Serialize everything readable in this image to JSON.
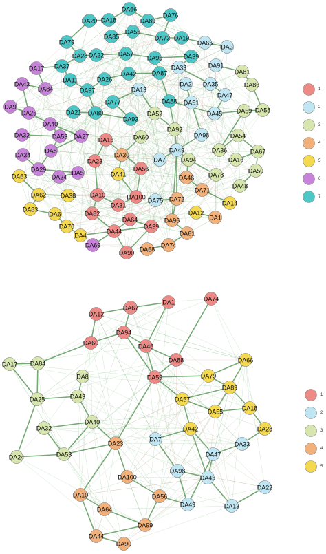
{
  "colors": {
    "1": "#ee8a86",
    "2": "#bfe6f2",
    "3": "#d7e6ae",
    "4": "#f2b07a",
    "5": "#f4d94e",
    "6": "#c783d9",
    "7": "#4cc6c6"
  },
  "networks": [
    {
      "id": "network-top",
      "legend": [
        "1",
        "2",
        "3",
        "4",
        "5",
        "6",
        "7"
      ],
      "nodes": [
        {
          "id": "DA66",
          "c": "7"
        },
        {
          "id": "DA20",
          "c": "7"
        },
        {
          "id": "DA18",
          "c": "7"
        },
        {
          "id": "DA89",
          "c": "7"
        },
        {
          "id": "DA76",
          "c": "7"
        },
        {
          "id": "DA85",
          "c": "7"
        },
        {
          "id": "DA55",
          "c": "7"
        },
        {
          "id": "DA73",
          "c": "7"
        },
        {
          "id": "DA19",
          "c": "7"
        },
        {
          "id": "DA79",
          "c": "7"
        },
        {
          "id": "DA65",
          "c": "2"
        },
        {
          "id": "DA3",
          "c": "2"
        },
        {
          "id": "DA28",
          "c": "7"
        },
        {
          "id": "DA22",
          "c": "7"
        },
        {
          "id": "DA57",
          "c": "7"
        },
        {
          "id": "DA95",
          "c": "7"
        },
        {
          "id": "DA39",
          "c": "7"
        },
        {
          "id": "DA17",
          "c": "6"
        },
        {
          "id": "DA37",
          "c": "7"
        },
        {
          "id": "DA91",
          "c": "2"
        },
        {
          "id": "DA33",
          "c": "2"
        },
        {
          "id": "DA87",
          "c": "7"
        },
        {
          "id": "DA81",
          "c": "3"
        },
        {
          "id": "DA42",
          "c": "7"
        },
        {
          "id": "DA43",
          "c": "6"
        },
        {
          "id": "DA11",
          "c": "7"
        },
        {
          "id": "DA26",
          "c": "7"
        },
        {
          "id": "DA84",
          "c": "6"
        },
        {
          "id": "DA97",
          "c": "7"
        },
        {
          "id": "DA13",
          "c": "2"
        },
        {
          "id": "DA2",
          "c": "2"
        },
        {
          "id": "DA35",
          "c": "2"
        },
        {
          "id": "DA86",
          "c": "3"
        },
        {
          "id": "DA47",
          "c": "2"
        },
        {
          "id": "DA9",
          "c": "6"
        },
        {
          "id": "DA77",
          "c": "7"
        },
        {
          "id": "DA88",
          "c": "7"
        },
        {
          "id": "DA51",
          "c": "2"
        },
        {
          "id": "DA25",
          "c": "6"
        },
        {
          "id": "DA21",
          "c": "7"
        },
        {
          "id": "DA80",
          "c": "7"
        },
        {
          "id": "DA52",
          "c": "3"
        },
        {
          "id": "DA45",
          "c": "2"
        },
        {
          "id": "DA59",
          "c": "3"
        },
        {
          "id": "DA58",
          "c": "3"
        },
        {
          "id": "DA93",
          "c": "7"
        },
        {
          "id": "DA40",
          "c": "6"
        },
        {
          "id": "DA32",
          "c": "6"
        },
        {
          "id": "DA53",
          "c": "6"
        },
        {
          "id": "DA27",
          "c": "6"
        },
        {
          "id": "DA92",
          "c": "3"
        },
        {
          "id": "DA60",
          "c": "3"
        },
        {
          "id": "DA98",
          "c": "2"
        },
        {
          "id": "DA54",
          "c": "3"
        },
        {
          "id": "DA15",
          "c": "1"
        },
        {
          "id": "DA8",
          "c": "6"
        },
        {
          "id": "DA34",
          "c": "6"
        },
        {
          "id": "DA30",
          "c": "4"
        },
        {
          "id": "DA49",
          "c": "2"
        },
        {
          "id": "DA36",
          "c": "3"
        },
        {
          "id": "DA67",
          "c": "3"
        },
        {
          "id": "DA7",
          "c": "2"
        },
        {
          "id": "DA94",
          "c": "3"
        },
        {
          "id": "DA16",
          "c": "3"
        },
        {
          "id": "DA23",
          "c": "1"
        },
        {
          "id": "DA56",
          "c": "1"
        },
        {
          "id": "DA29",
          "c": "6"
        },
        {
          "id": "DA24",
          "c": "6"
        },
        {
          "id": "DA5",
          "c": "6"
        },
        {
          "id": "DA50",
          "c": "3"
        },
        {
          "id": "DA63",
          "c": "5"
        },
        {
          "id": "DA41",
          "c": "5"
        },
        {
          "id": "DA78",
          "c": "3"
        },
        {
          "id": "DA46",
          "c": "4"
        },
        {
          "id": "DA48",
          "c": "3"
        },
        {
          "id": "DA71",
          "c": "4"
        },
        {
          "id": "DA62",
          "c": "5"
        },
        {
          "id": "DA38",
          "c": "5"
        },
        {
          "id": "DA10",
          "c": "1"
        },
        {
          "id": "DA100",
          "c": "1"
        },
        {
          "id": "DA75",
          "c": "2"
        },
        {
          "id": "DA72",
          "c": "4"
        },
        {
          "id": "DA14",
          "c": "5"
        },
        {
          "id": "DA83",
          "c": "5"
        },
        {
          "id": "DA31",
          "c": "1"
        },
        {
          "id": "DA6",
          "c": "5"
        },
        {
          "id": "DA82",
          "c": "1"
        },
        {
          "id": "DA12",
          "c": "5"
        },
        {
          "id": "DA1",
          "c": "4"
        },
        {
          "id": "DA64",
          "c": "1"
        },
        {
          "id": "DA96",
          "c": "4"
        },
        {
          "id": "DA70",
          "c": "5"
        },
        {
          "id": "DA99",
          "c": "1"
        },
        {
          "id": "DA44",
          "c": "1"
        },
        {
          "id": "DA4",
          "c": "5"
        },
        {
          "id": "DA61",
          "c": "4"
        },
        {
          "id": "DA74",
          "c": "4"
        },
        {
          "id": "DA69",
          "c": "6"
        },
        {
          "id": "DA68",
          "c": "4"
        },
        {
          "id": "DA90",
          "c": "1"
        }
      ],
      "edges": [
        [
          "DA20",
          "DA79"
        ],
        [
          "DA20",
          "DA18"
        ],
        [
          "DA18",
          "DA66"
        ],
        [
          "DA66",
          "DA89"
        ],
        [
          "DA89",
          "DA76"
        ],
        [
          "DA85",
          "DA55"
        ],
        [
          "DA55",
          "DA73"
        ],
        [
          "DA73",
          "DA19"
        ],
        [
          "DA79",
          "DA28"
        ],
        [
          "DA28",
          "DA37"
        ],
        [
          "DA37",
          "DA11"
        ],
        [
          "DA11",
          "DA97"
        ],
        [
          "DA97",
          "DA80"
        ],
        [
          "DA22",
          "DA28"
        ],
        [
          "DA57",
          "DA95"
        ],
        [
          "DA95",
          "DA87"
        ],
        [
          "DA87",
          "DA88"
        ],
        [
          "DA88",
          "DA92"
        ],
        [
          "DA92",
          "DA49"
        ],
        [
          "DA42",
          "DA26"
        ],
        [
          "DA26",
          "DA97"
        ],
        [
          "DA65",
          "DA3"
        ],
        [
          "DA39",
          "DA33"
        ],
        [
          "DA33",
          "DA35"
        ],
        [
          "DA35",
          "DA47"
        ],
        [
          "DA47",
          "DA45"
        ],
        [
          "DA45",
          "DA59"
        ],
        [
          "DA59",
          "DA58"
        ],
        [
          "DA81",
          "DA86"
        ],
        [
          "DA86",
          "DA58"
        ],
        [
          "DA17",
          "DA84"
        ],
        [
          "DA43",
          "DA84"
        ],
        [
          "DA43",
          "DA25"
        ],
        [
          "DA9",
          "DA25"
        ],
        [
          "DA25",
          "DA40"
        ],
        [
          "DA40",
          "DA53"
        ],
        [
          "DA32",
          "DA53"
        ],
        [
          "DA53",
          "DA8"
        ],
        [
          "DA8",
          "DA29"
        ],
        [
          "DA29",
          "DA5"
        ],
        [
          "DA27",
          "DA8"
        ],
        [
          "DA34",
          "DA29"
        ],
        [
          "DA54",
          "DA67"
        ],
        [
          "DA67",
          "DA50"
        ],
        [
          "DA16",
          "DA67"
        ],
        [
          "DA36",
          "DA54"
        ],
        [
          "DA48",
          "DA50"
        ],
        [
          "DA78",
          "DA94"
        ],
        [
          "DA94",
          "DA49"
        ],
        [
          "DA15",
          "DA23"
        ],
        [
          "DA23",
          "DA10"
        ],
        [
          "DA10",
          "DA31"
        ],
        [
          "DA31",
          "DA100"
        ],
        [
          "DA56",
          "DA100"
        ],
        [
          "DA15",
          "DA56"
        ],
        [
          "DA82",
          "DA44"
        ],
        [
          "DA44",
          "DA64"
        ],
        [
          "DA64",
          "DA99"
        ],
        [
          "DA99",
          "DA90"
        ],
        [
          "DA90",
          "DA44"
        ],
        [
          "DA30",
          "DA41"
        ],
        [
          "DA63",
          "DA62"
        ],
        [
          "DA62",
          "DA83"
        ],
        [
          "DA83",
          "DA6"
        ],
        [
          "DA6",
          "DA70"
        ],
        [
          "DA70",
          "DA4"
        ],
        [
          "DA38",
          "DA62"
        ],
        [
          "DA12",
          "DA1"
        ],
        [
          "DA14",
          "DA71"
        ],
        [
          "DA72",
          "DA96"
        ],
        [
          "DA96",
          "DA61"
        ],
        [
          "DA61",
          "DA74"
        ],
        [
          "DA74",
          "DA68"
        ],
        [
          "DA46",
          "DA71"
        ],
        [
          "DA72",
          "DA75"
        ],
        [
          "DA2",
          "DA51"
        ],
        [
          "DA13",
          "DA77"
        ],
        [
          "DA93",
          "DA80"
        ],
        [
          "DA21",
          "DA80"
        ],
        [
          "DA52",
          "DA92"
        ],
        [
          "DA60",
          "DA30"
        ],
        [
          "DA98",
          "DA49"
        ],
        [
          "DA7",
          "DA49"
        ],
        [
          "DA24",
          "DA5"
        ],
        [
          "DA91",
          "DA81"
        ],
        [
          "DA69",
          "DA44"
        ],
        [
          "DA39",
          "DA95"
        ],
        [
          "DA65",
          "DA19"
        ],
        [
          "DA76",
          "DA73"
        ],
        [
          "DA22",
          "DA57"
        ],
        [
          "DA87",
          "DA42"
        ],
        [
          "DA88",
          "DA45"
        ],
        [
          "DA49",
          "DA72"
        ],
        [
          "DA49",
          "DA96"
        ],
        [
          "DA41",
          "DA100"
        ],
        [
          "DA82",
          "DA10"
        ],
        [
          "DA4",
          "DA99"
        ],
        [
          "DA94",
          "DA46"
        ],
        [
          "DA59",
          "DA36"
        ],
        [
          "DA13",
          "DA52"
        ],
        [
          "DA77",
          "DA93"
        ],
        [
          "DA51",
          "DA98"
        ],
        [
          "DA40",
          "DA27"
        ],
        [
          "DA17",
          "DA37"
        ]
      ]
    },
    {
      "id": "network-bottom",
      "legend": [
        "1",
        "2",
        "3",
        "4",
        "5"
      ],
      "nodes": [
        {
          "id": "DA67",
          "c": "1"
        },
        {
          "id": "DA1",
          "c": "1"
        },
        {
          "id": "DA74",
          "c": "1"
        },
        {
          "id": "DA12",
          "c": "1"
        },
        {
          "id": "DA94",
          "c": "1"
        },
        {
          "id": "DA60",
          "c": "1"
        },
        {
          "id": "DA46",
          "c": "1"
        },
        {
          "id": "DA88",
          "c": "1"
        },
        {
          "id": "DA66",
          "c": "5"
        },
        {
          "id": "DA17",
          "c": "3"
        },
        {
          "id": "DA84",
          "c": "3"
        },
        {
          "id": "DA8",
          "c": "3"
        },
        {
          "id": "DA59",
          "c": "1"
        },
        {
          "id": "DA79",
          "c": "5"
        },
        {
          "id": "DA89",
          "c": "5"
        },
        {
          "id": "DA25",
          "c": "3"
        },
        {
          "id": "DA43",
          "c": "3"
        },
        {
          "id": "DA57",
          "c": "5"
        },
        {
          "id": "DA18",
          "c": "5"
        },
        {
          "id": "DA55",
          "c": "5"
        },
        {
          "id": "DA28",
          "c": "5"
        },
        {
          "id": "DA40",
          "c": "3"
        },
        {
          "id": "DA42",
          "c": "5"
        },
        {
          "id": "DA32",
          "c": "3"
        },
        {
          "id": "DA7",
          "c": "2"
        },
        {
          "id": "DA23",
          "c": "4"
        },
        {
          "id": "DA33",
          "c": "2"
        },
        {
          "id": "DA24",
          "c": "3"
        },
        {
          "id": "DA53",
          "c": "3"
        },
        {
          "id": "DA47",
          "c": "2"
        },
        {
          "id": "DA100",
          "c": "4"
        },
        {
          "id": "DA98",
          "c": "2"
        },
        {
          "id": "DA45",
          "c": "2"
        },
        {
          "id": "DA22",
          "c": "2"
        },
        {
          "id": "DA10",
          "c": "4"
        },
        {
          "id": "DA56",
          "c": "4"
        },
        {
          "id": "DA64",
          "c": "4"
        },
        {
          "id": "DA49",
          "c": "2"
        },
        {
          "id": "DA13",
          "c": "2"
        },
        {
          "id": "DA99",
          "c": "4"
        },
        {
          "id": "DA44",
          "c": "4"
        },
        {
          "id": "DA90",
          "c": "4"
        }
      ],
      "edges": [
        [
          "DA12",
          "DA67"
        ],
        [
          "DA67",
          "DA94"
        ],
        [
          "DA94",
          "DA60"
        ],
        [
          "DA60",
          "DA12"
        ],
        [
          "DA67",
          "DA1"
        ],
        [
          "DA1",
          "DA46"
        ],
        [
          "DA46",
          "DA94"
        ],
        [
          "DA46",
          "DA88"
        ],
        [
          "DA94",
          "DA59"
        ],
        [
          "DA59",
          "DA46"
        ],
        [
          "DA74",
          "DA88"
        ],
        [
          "DA17",
          "DA84"
        ],
        [
          "DA84",
          "DA25"
        ],
        [
          "DA25",
          "DA43"
        ],
        [
          "DA17",
          "DA25"
        ],
        [
          "DA60",
          "DA84"
        ],
        [
          "DA8",
          "DA43"
        ],
        [
          "DA43",
          "DA40"
        ],
        [
          "DA40",
          "DA32"
        ],
        [
          "DA32",
          "DA53"
        ],
        [
          "DA40",
          "DA53"
        ],
        [
          "DA24",
          "DA53"
        ],
        [
          "DA53",
          "DA23"
        ],
        [
          "DA23",
          "DA100"
        ],
        [
          "DA23",
          "DA10"
        ],
        [
          "DA10",
          "DA64"
        ],
        [
          "DA10",
          "DA44"
        ],
        [
          "DA44",
          "DA90"
        ],
        [
          "DA64",
          "DA99"
        ],
        [
          "DA99",
          "DA44"
        ],
        [
          "DA56",
          "DA99"
        ],
        [
          "DA56",
          "DA49"
        ],
        [
          "DA49",
          "DA98"
        ],
        [
          "DA98",
          "DA45"
        ],
        [
          "DA45",
          "DA47"
        ],
        [
          "DA47",
          "DA33"
        ],
        [
          "DA45",
          "DA13"
        ],
        [
          "DA13",
          "DA22"
        ],
        [
          "DA33",
          "DA28"
        ],
        [
          "DA28",
          "DA18"
        ],
        [
          "DA18",
          "DA89"
        ],
        [
          "DA89",
          "DA79"
        ],
        [
          "DA79",
          "DA66"
        ],
        [
          "DA66",
          "DA55"
        ],
        [
          "DA55",
          "DA57"
        ],
        [
          "DA57",
          "DA42"
        ],
        [
          "DA42",
          "DA7"
        ],
        [
          "DA57",
          "DA89"
        ],
        [
          "DA59",
          "DA57"
        ],
        [
          "DA59",
          "DA23"
        ],
        [
          "DA79",
          "DA59"
        ],
        [
          "DA88",
          "DA59"
        ],
        [
          "DA42",
          "DA45"
        ],
        [
          "DA7",
          "DA98"
        ],
        [
          "DA55",
          "DA18"
        ],
        [
          "DA40",
          "DA23"
        ],
        [
          "DA49",
          "DA47"
        ],
        [
          "DA25",
          "DA24"
        ],
        [
          "DA42",
          "DA47"
        ],
        [
          "DA100",
          "DA56"
        ]
      ]
    }
  ]
}
